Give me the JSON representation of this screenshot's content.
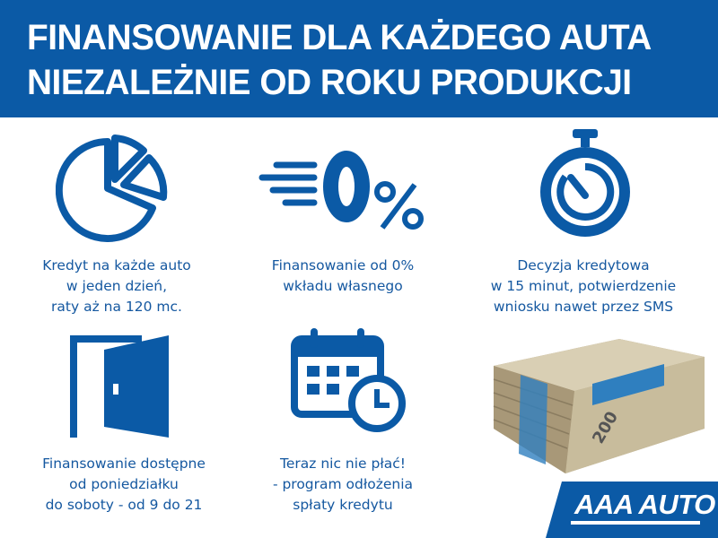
{
  "header": {
    "line1": "FINANSOWANIE DLA KAŻDEGO AUTA",
    "line2": "NIEZALEŻNIE OD ROKU PRODUKCJI"
  },
  "features": [
    {
      "icon": "pie-chart-icon",
      "lines": [
        "Kredyt na każde auto",
        "w jeden dzień,",
        "raty aż na 120 mc."
      ]
    },
    {
      "icon": "zero-percent-icon",
      "lines": [
        "Finansowanie od 0%",
        "wkładu własnego"
      ]
    },
    {
      "icon": "stopwatch-icon",
      "lines": [
        "Decyzja kredytowa",
        "w 15 minut, potwierdzenie",
        "wniosku nawet przez SMS"
      ]
    },
    {
      "icon": "door-icon",
      "lines": [
        "Finansowanie dostępne",
        "od poniedziałku",
        "do soboty - od 9 do 21"
      ]
    },
    {
      "icon": "calendar-clock-icon",
      "lines": [
        "Teraz nic nie płać!",
        "- program odłożenia",
        "spłaty kredytu"
      ]
    }
  ],
  "banknotes": {
    "icon": "banknotes-icon",
    "denomination": "200"
  },
  "logo": {
    "text": "AAA AUTO"
  },
  "colors": {
    "brand": "#0b5aa6",
    "text": "#1558a0"
  }
}
